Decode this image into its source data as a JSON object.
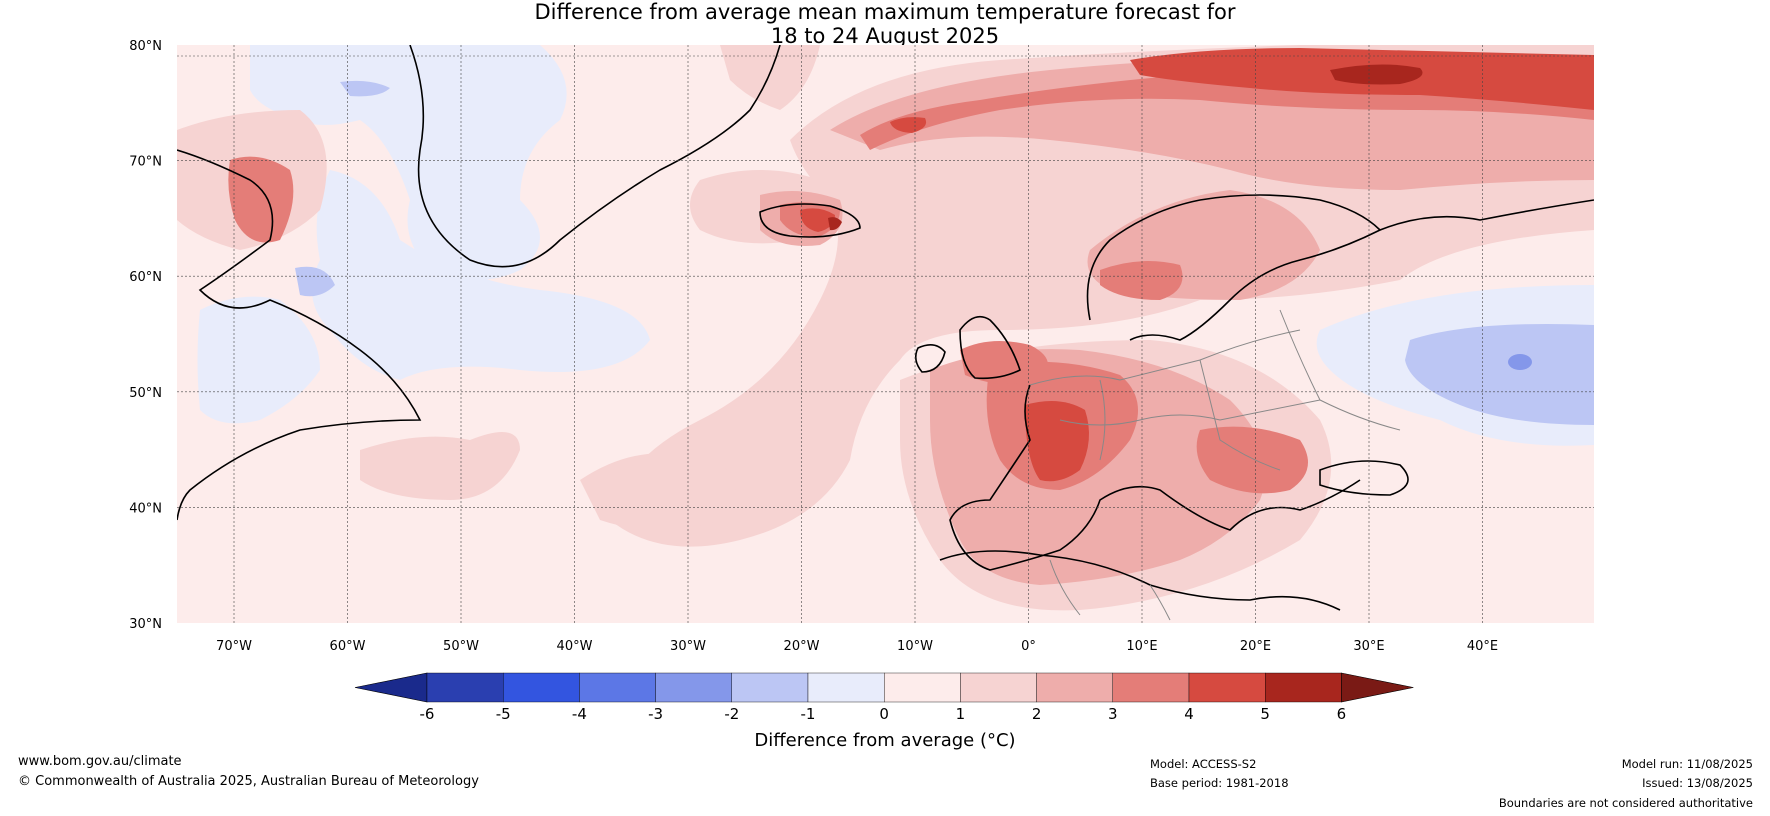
{
  "title": {
    "line1": "Difference from average mean maximum temperature forecast for",
    "line2": "18 to 24 August 2025"
  },
  "map": {
    "lat_labels": [
      "80°N",
      "70°N",
      "60°N",
      "50°N",
      "40°N",
      "30°N"
    ],
    "lon_labels": [
      "70°W",
      "60°W",
      "50°W",
      "40°W",
      "30°W",
      "20°W",
      "10°W",
      "0°",
      "10°E",
      "20°E",
      "30°E",
      "40°E"
    ]
  },
  "colorbar": {
    "label": "Difference from average (°C)",
    "tick_labels": [
      "-6",
      "-5",
      "-4",
      "-3",
      "-2",
      "-1",
      "0",
      "1",
      "2",
      "3",
      "4",
      "5",
      "6"
    ],
    "colors": [
      "#1a2a8c",
      "#2a3fb0",
      "#3355e0",
      "#5c77e6",
      "#8497ea",
      "#bcc6f4",
      "#e8ecfb",
      "#fdeceb",
      "#f6d3d2",
      "#eeadab",
      "#e47d78",
      "#d64a40",
      "#a8261e",
      "#7a1a15"
    ]
  },
  "footer": {
    "website": "www.bom.gov.au/climate",
    "copyright": "© Commonwealth of Australia 2025, Australian Bureau of Meteorology",
    "model": "Model: ACCESS-S2",
    "base_period": "Base period: 1981-2018",
    "model_run": "Model run: 11/08/2025",
    "issued": "Issued: 13/08/2025",
    "disclaimer": "Boundaries are not considered authoritative"
  }
}
